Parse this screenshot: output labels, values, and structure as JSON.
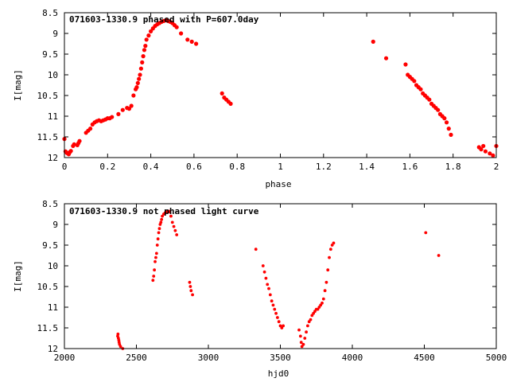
{
  "chart_data": [
    {
      "type": "scatter",
      "title": "071603-1330.9 phased with P=607.0day",
      "xlabel": "phase",
      "ylabel": "I[mag]",
      "xlim": [
        0,
        2
      ],
      "ylim": [
        12,
        8.5
      ],
      "y_inverted": true,
      "xticks": [
        0,
        0.2,
        0.4,
        0.6,
        0.8,
        1,
        1.2,
        1.4,
        1.6,
        1.8,
        2
      ],
      "xtick_labels": [
        "0",
        "0.2",
        "0.4",
        "0.6",
        "0.8",
        "1",
        "1.2",
        "1.4",
        "1.6",
        "1.8",
        "2"
      ],
      "yticks": [
        8.5,
        9,
        9.5,
        10,
        10.5,
        11,
        11.5,
        12
      ],
      "ytick_labels": [
        "8.5",
        "9",
        "9.5",
        "10",
        "10.5",
        "11",
        "11.5",
        "12"
      ],
      "marker_color": "#ff0000",
      "marker_size": "large",
      "series": [
        {
          "x": [
            0.0,
            0.005,
            0.01,
            0.015,
            0.02,
            0.025,
            0.03,
            0.04,
            0.045,
            0.06,
            0.065,
            0.07,
            0.1,
            0.11,
            0.12,
            0.13,
            0.14,
            0.15,
            0.16,
            0.17,
            0.18,
            0.19,
            0.2,
            0.21,
            0.22,
            0.25,
            0.27,
            0.29,
            0.3,
            0.31,
            0.32,
            0.33,
            0.335,
            0.34,
            0.345,
            0.35,
            0.355,
            0.36,
            0.365,
            0.37,
            0.375,
            0.38,
            0.39,
            0.4,
            0.41,
            0.42,
            0.43,
            0.44,
            0.45,
            0.46,
            0.47,
            0.48,
            0.49,
            0.5,
            0.51,
            0.52,
            0.54,
            0.57,
            0.59,
            0.61,
            0.73,
            0.74,
            0.75,
            0.76,
            0.77,
            1.43,
            1.49,
            1.58,
            1.59,
            1.6,
            1.61,
            1.62,
            1.63,
            1.64,
            1.65,
            1.66,
            1.67,
            1.68,
            1.69,
            1.7,
            1.71,
            1.72,
            1.73,
            1.74,
            1.75,
            1.76,
            1.77,
            1.78,
            1.79,
            1.92,
            1.93,
            1.94,
            1.95,
            1.97,
            1.985,
            2.0
          ],
          "y": [
            11.55,
            11.85,
            11.88,
            11.9,
            11.92,
            11.87,
            11.84,
            11.72,
            11.68,
            11.7,
            11.65,
            11.6,
            11.4,
            11.35,
            11.3,
            11.2,
            11.15,
            11.12,
            11.1,
            11.12,
            11.1,
            11.08,
            11.05,
            11.05,
            11.02,
            10.95,
            10.85,
            10.8,
            10.82,
            10.75,
            10.5,
            10.35,
            10.3,
            10.2,
            10.1,
            10.0,
            9.85,
            9.7,
            9.55,
            9.4,
            9.3,
            9.15,
            9.05,
            8.95,
            8.88,
            8.82,
            8.78,
            8.75,
            8.72,
            8.7,
            8.68,
            8.7,
            8.72,
            8.75,
            8.8,
            8.85,
            9.0,
            9.15,
            9.2,
            9.25,
            10.45,
            10.55,
            10.6,
            10.65,
            10.7,
            9.2,
            9.6,
            9.75,
            10.0,
            10.05,
            10.1,
            10.15,
            10.25,
            10.3,
            10.35,
            10.45,
            10.5,
            10.55,
            10.6,
            10.7,
            10.75,
            10.8,
            10.85,
            10.95,
            11.0,
            11.05,
            11.15,
            11.3,
            11.45,
            11.75,
            11.8,
            11.72,
            11.85,
            11.9,
            11.95,
            11.72
          ]
        }
      ]
    },
    {
      "type": "scatter",
      "title": "071603-1330.9 not phased light curve",
      "xlabel": "hjd0",
      "ylabel": "I[mag]",
      "xlim": [
        2000,
        5000
      ],
      "ylim": [
        12,
        8.5
      ],
      "y_inverted": true,
      "xticks": [
        2000,
        2500,
        3000,
        3500,
        4000,
        4500,
        5000
      ],
      "xtick_labels": [
        "2000",
        "2500",
        "3000",
        "3500",
        "4000",
        "4500",
        "5000"
      ],
      "yticks": [
        8.5,
        9,
        9.5,
        10,
        10.5,
        11,
        11.5,
        12
      ],
      "ytick_labels": [
        "8.5",
        "9",
        "9.5",
        "10",
        "10.5",
        "11",
        "11.5",
        "12"
      ],
      "marker_color": "#ff0000",
      "marker_size": "small",
      "series": [
        {
          "x": [
            2370,
            2372,
            2375,
            2378,
            2380,
            2383,
            2390,
            2405,
            2615,
            2620,
            2625,
            2630,
            2635,
            2640,
            2645,
            2650,
            2655,
            2660,
            2665,
            2670,
            2675,
            2680,
            2690,
            2700,
            2710,
            2720,
            2725,
            2730,
            2740,
            2750,
            2760,
            2770,
            2780,
            2870,
            2875,
            2880,
            2890,
            3330,
            3380,
            3390,
            3400,
            3410,
            3420,
            3430,
            3440,
            3450,
            3460,
            3470,
            3480,
            3490,
            3500,
            3510,
            3520,
            3630,
            3640,
            3645,
            3650,
            3660,
            3670,
            3680,
            3690,
            3700,
            3710,
            3720,
            3730,
            3740,
            3750,
            3760,
            3770,
            3780,
            3790,
            3800,
            3810,
            3820,
            3830,
            3840,
            3850,
            3860,
            3870,
            4510,
            4600
          ],
          "y": [
            11.7,
            11.65,
            11.75,
            11.8,
            11.85,
            11.9,
            11.95,
            12.0,
            10.35,
            10.25,
            10.1,
            9.9,
            9.8,
            9.7,
            9.5,
            9.35,
            9.2,
            9.1,
            9.0,
            8.95,
            8.88,
            8.8,
            8.75,
            8.72,
            8.7,
            8.68,
            8.68,
            8.7,
            8.8,
            8.95,
            9.05,
            9.15,
            9.25,
            10.4,
            10.5,
            10.6,
            10.7,
            9.6,
            10.0,
            10.15,
            10.3,
            10.45,
            10.55,
            10.7,
            10.85,
            10.95,
            11.05,
            11.15,
            11.25,
            11.35,
            11.45,
            11.5,
            11.45,
            11.55,
            11.7,
            11.85,
            11.95,
            11.9,
            11.75,
            11.6,
            11.45,
            11.35,
            11.3,
            11.2,
            11.15,
            11.1,
            11.05,
            11.05,
            11.0,
            10.95,
            10.9,
            10.8,
            10.6,
            10.4,
            10.1,
            9.8,
            9.6,
            9.5,
            9.45,
            9.2,
            9.75
          ]
        }
      ]
    }
  ]
}
